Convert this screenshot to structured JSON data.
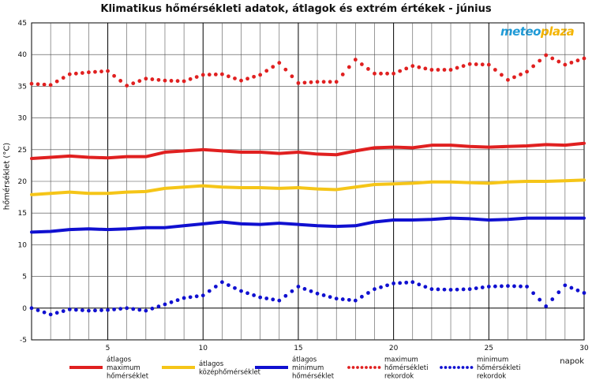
{
  "chart_data": {
    "type": "line",
    "title": "Klimatikus hőmérsékleti adatok, átlagok és extrém értékek - június",
    "xlabel": "napok",
    "ylabel": "hőmérséklet (°C)",
    "xlim": [
      1,
      30
    ],
    "ylim": [
      -5,
      45
    ],
    "x_ticks": [
      5,
      10,
      15,
      20,
      25,
      30
    ],
    "y_ticks": [
      -5,
      0,
      5,
      10,
      15,
      20,
      25,
      30,
      35,
      40,
      45
    ],
    "grid": true,
    "legend_position": "bottom",
    "x": [
      1,
      2,
      3,
      4,
      5,
      6,
      7,
      8,
      9,
      10,
      11,
      12,
      13,
      14,
      15,
      16,
      17,
      18,
      19,
      20,
      21,
      22,
      23,
      24,
      25,
      26,
      27,
      28,
      29,
      30
    ],
    "series": [
      {
        "name": "átlagos maximum hőmérséklet",
        "style": "solid",
        "color": "#e02020",
        "values": [
          23.6,
          23.8,
          24.0,
          23.8,
          23.7,
          23.9,
          23.9,
          24.6,
          24.8,
          25.0,
          24.8,
          24.6,
          24.6,
          24.4,
          24.6,
          24.3,
          24.2,
          24.8,
          25.3,
          25.4,
          25.3,
          25.7,
          25.7,
          25.5,
          25.4,
          25.5,
          25.6,
          25.8,
          25.7,
          26.0
        ]
      },
      {
        "name": "átlagos középhőmérséklet",
        "style": "solid",
        "color": "#f5c518",
        "values": [
          17.9,
          18.1,
          18.3,
          18.1,
          18.1,
          18.3,
          18.4,
          18.9,
          19.1,
          19.3,
          19.1,
          19.0,
          19.0,
          18.9,
          19.0,
          18.8,
          18.7,
          19.1,
          19.5,
          19.6,
          19.7,
          19.9,
          19.9,
          19.8,
          19.7,
          19.9,
          20.0,
          20.0,
          20.1,
          20.2
        ]
      },
      {
        "name": "átlagos minimum hőmérséklet",
        "style": "solid",
        "color": "#1010d0",
        "values": [
          12.0,
          12.1,
          12.4,
          12.5,
          12.4,
          12.5,
          12.7,
          12.7,
          13.0,
          13.3,
          13.6,
          13.3,
          13.2,
          13.4,
          13.2,
          13.0,
          12.9,
          13.0,
          13.6,
          13.9,
          13.9,
          14.0,
          14.2,
          14.1,
          13.9,
          14.0,
          14.2,
          14.2,
          14.2,
          14.2
        ]
      },
      {
        "name": "maximum hőmérsékleti rekordok",
        "style": "dotted",
        "color": "#e02020",
        "values": [
          35.4,
          35.2,
          36.9,
          37.2,
          37.4,
          35.1,
          36.2,
          35.9,
          35.8,
          36.8,
          36.9,
          35.9,
          36.8,
          38.7,
          35.5,
          35.7,
          35.7,
          39.2,
          37.0,
          37.0,
          38.2,
          37.6,
          37.6,
          38.5,
          38.4,
          36.0,
          37.3,
          39.9,
          38.4,
          39.4
        ]
      },
      {
        "name": "minimum hőmérsékleti rekordok",
        "style": "dotted",
        "color": "#1010d0",
        "values": [
          0.0,
          -1.0,
          -0.2,
          -0.4,
          -0.3,
          0.0,
          -0.4,
          0.6,
          1.6,
          2.0,
          4.1,
          2.7,
          1.7,
          1.2,
          3.4,
          2.3,
          1.5,
          1.2,
          3.0,
          3.9,
          4.1,
          3.0,
          2.9,
          3.0,
          3.4,
          3.5,
          3.4,
          0.3,
          3.6,
          2.4
        ]
      }
    ]
  },
  "legend": [
    {
      "lines": [
        "átlagos",
        "maximum",
        "hőmérséklet"
      ],
      "color": "#e02020",
      "style": "solid"
    },
    {
      "lines": [
        "átlagos",
        "középhőmérséklet"
      ],
      "color": "#f5c518",
      "style": "solid"
    },
    {
      "lines": [
        "átlagos",
        "minimum",
        "hőmérséklet"
      ],
      "color": "#1010d0",
      "style": "solid"
    },
    {
      "lines": [
        "maximum",
        "hőmérsékleti",
        "rekordok"
      ],
      "color": "#e02020",
      "style": "dotted"
    },
    {
      "lines": [
        "minimum",
        "hőmérsékleti",
        "rekordok"
      ],
      "color": "#1010d0",
      "style": "dotted"
    }
  ],
  "logo": {
    "part1": "meteo",
    "part2": "plaza"
  }
}
